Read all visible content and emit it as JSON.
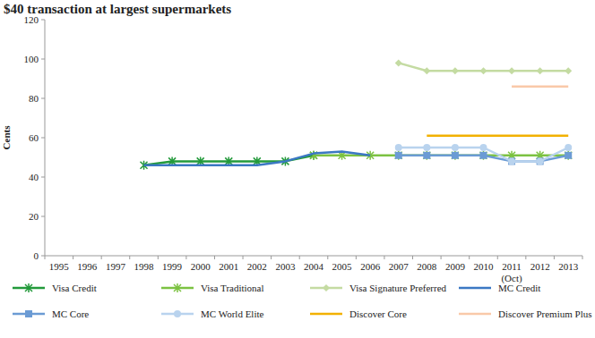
{
  "chart_data": {
    "type": "line",
    "title": "$40 transaction at largest supermarkets",
    "y_label": "Cents",
    "categories": [
      "1995",
      "1996",
      "1997",
      "1998",
      "1999",
      "2000",
      "2001",
      "2002",
      "2003",
      "2004",
      "2005",
      "2006",
      "2007",
      "2008",
      "2009",
      "2010",
      "2011\n(Oct)",
      "2012",
      "2013"
    ],
    "ylim": [
      0,
      120
    ],
    "yticks": [
      0,
      20,
      40,
      60,
      80,
      100,
      120
    ],
    "grid": false,
    "legend": "bottom",
    "series": [
      {
        "name": "Visa Credit",
        "color": "#239a3b",
        "marker": "x",
        "line_style": "solid",
        "values": [
          null,
          null,
          null,
          46,
          48,
          48,
          48,
          48,
          48,
          51,
          null,
          null,
          null,
          null,
          null,
          null,
          null,
          null,
          null
        ]
      },
      {
        "name": "Visa Traditional",
        "color": "#7cc242",
        "marker": "x",
        "line_style": "solid",
        "values": [
          null,
          null,
          null,
          null,
          null,
          null,
          null,
          null,
          null,
          51,
          51,
          51,
          51,
          51,
          51,
          51,
          51,
          51,
          51
        ]
      },
      {
        "name": "Visa Signature Preferred",
        "color": "#c4dba2",
        "marker": "diamond",
        "line_style": "solid",
        "values": [
          null,
          null,
          null,
          null,
          null,
          null,
          null,
          null,
          null,
          null,
          null,
          null,
          98,
          94,
          94,
          94,
          94,
          94,
          94
        ]
      },
      {
        "name": "MC Credit",
        "color": "#3b78c3",
        "marker": "none",
        "line_style": "solid",
        "values": [
          null,
          null,
          null,
          46,
          46,
          46,
          46,
          46,
          48,
          52,
          53,
          51,
          null,
          null,
          null,
          null,
          null,
          null,
          null
        ]
      },
      {
        "name": "MC Core",
        "color": "#6b9bd4",
        "marker": "square",
        "line_style": "solid",
        "values": [
          null,
          null,
          null,
          null,
          null,
          null,
          null,
          null,
          null,
          null,
          null,
          null,
          51,
          51,
          51,
          51,
          48,
          48,
          51
        ]
      },
      {
        "name": "MC World Elite",
        "color": "#b9d3ee",
        "marker": "circle",
        "line_style": "solid",
        "values": [
          null,
          null,
          null,
          null,
          null,
          null,
          null,
          null,
          null,
          null,
          null,
          null,
          55,
          55,
          55,
          55,
          48,
          48,
          55
        ]
      },
      {
        "name": "Discover Core",
        "color": "#f2b100",
        "marker": "none",
        "line_style": "solid",
        "values": [
          null,
          null,
          null,
          null,
          null,
          null,
          null,
          null,
          null,
          null,
          null,
          null,
          null,
          61,
          61,
          61,
          61,
          61,
          61
        ]
      },
      {
        "name": "Discover Premium Plus",
        "color": "#f9c9a9",
        "marker": "none",
        "line_style": "solid",
        "values": [
          null,
          null,
          null,
          null,
          null,
          null,
          null,
          null,
          null,
          null,
          null,
          null,
          null,
          null,
          null,
          null,
          86,
          86,
          86
        ]
      }
    ]
  }
}
